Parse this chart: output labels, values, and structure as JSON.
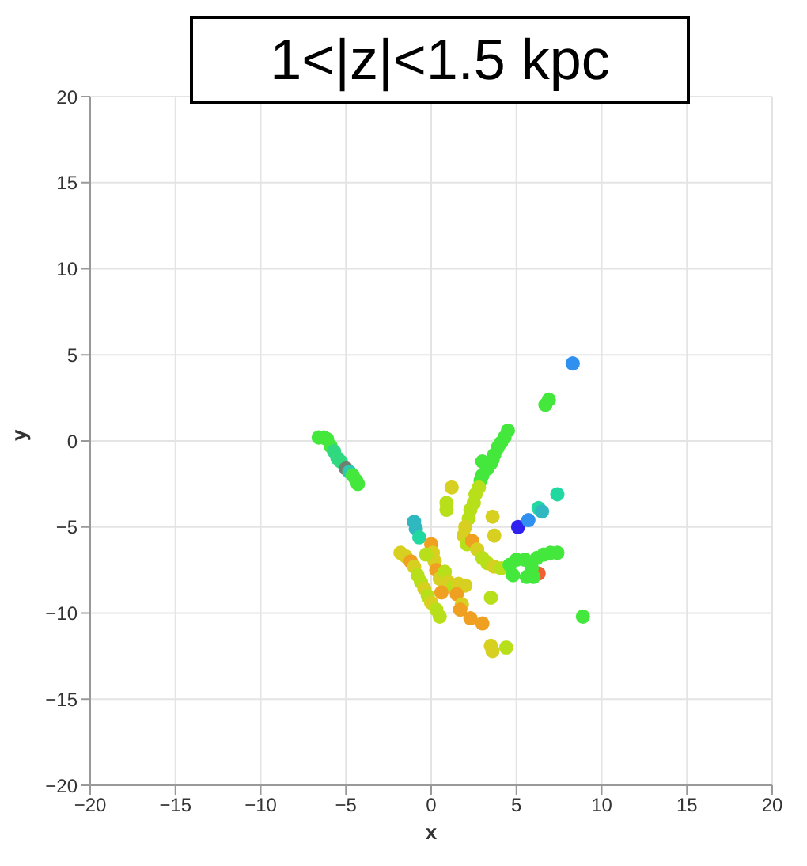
{
  "chart_data": {
    "type": "scatter",
    "title": "1<|z|<1.5 kpc",
    "xlabel": "x",
    "ylabel": "y",
    "xlim": [
      -20,
      20
    ],
    "ylim": [
      -20,
      20
    ],
    "xticks": [
      {
        "value": -20,
        "label": "−20"
      },
      {
        "value": -15,
        "label": "−15"
      },
      {
        "value": -10,
        "label": "−10"
      },
      {
        "value": -5,
        "label": "−5"
      },
      0,
      5,
      10,
      15,
      20
    ],
    "yticks": [
      {
        "value": -20,
        "label": "−20"
      },
      {
        "value": -15,
        "label": "−15"
      },
      {
        "value": -10,
        "label": "−10"
      },
      {
        "value": -5,
        "label": "−5"
      },
      0,
      5,
      10,
      15,
      20
    ],
    "grid": true,
    "marker": "circle",
    "series": [
      {
        "x": [
          -6.6,
          -6.3,
          -6.1,
          -5.9,
          -5.7,
          -5.5,
          -5.3,
          -5.0,
          -4.8,
          -4.6,
          -4.4,
          -4.3,
          8.3,
          6.9,
          6.7,
          4.5,
          4.3,
          4.1,
          3.9,
          3.7,
          3.6,
          3.5,
          3.0,
          3.3,
          3.0,
          2.9,
          2.8,
          2.6,
          2.5,
          2.3,
          2.2,
          2.0,
          1.9,
          2.1,
          2.4,
          2.7,
          3.0,
          3.3,
          3.7,
          4.1,
          4.6,
          3.6,
          3.7,
          1.2,
          0.9,
          0.9,
          5.1,
          5.7,
          6.3,
          6.5,
          7.4,
          8.9,
          5.0,
          5.5,
          6.2,
          6.6,
          7.0,
          7.4,
          6.3,
          5.9,
          5.6,
          6.0,
          4.8,
          -1.0,
          -0.9,
          -0.7,
          -1.8,
          -1.5,
          -1.2,
          -1.0,
          -0.8,
          -0.6,
          -0.4,
          -0.2,
          0.0,
          0.3,
          0.5,
          0.0,
          0.1,
          0.2,
          0.3,
          0.5,
          0.8,
          1.0,
          1.3,
          1.6,
          2.0,
          1.5,
          0.6,
          1.8,
          1.7,
          2.3,
          3.0,
          3.5,
          3.6,
          4.4,
          3.5,
          -0.3
        ],
        "values": [
          0.2,
          0.2,
          0.1,
          -0.3,
          -0.6,
          -1.0,
          -1.2,
          -1.6,
          -1.8,
          -2.0,
          -2.3,
          -2.5,
          4.5,
          2.4,
          2.1,
          0.6,
          0.2,
          -0.1,
          -0.4,
          -0.8,
          -1.1,
          -1.3,
          -1.2,
          -1.6,
          -2.0,
          -2.3,
          -2.7,
          -3.1,
          -3.6,
          -4.0,
          -4.5,
          -5.0,
          -5.5,
          -6.0,
          -5.8,
          -6.3,
          -6.8,
          -7.1,
          -7.3,
          -7.4,
          -7.2,
          -4.4,
          -5.5,
          -2.7,
          -4.0,
          -3.6,
          -5.0,
          -4.6,
          -3.9,
          -4.1,
          -3.1,
          -10.2,
          -6.9,
          -6.9,
          -6.8,
          -6.6,
          -6.5,
          -6.5,
          -7.7,
          -7.4,
          -7.9,
          -7.9,
          -7.8,
          -4.7,
          -5.1,
          -5.6,
          -6.5,
          -6.7,
          -7.0,
          -7.3,
          -7.8,
          -8.2,
          -8.6,
          -9.0,
          -9.4,
          -9.8,
          -10.2,
          -6.0,
          -6.5,
          -7.0,
          -7.5,
          -8.0,
          -7.6,
          -8.2,
          -8.5,
          -8.3,
          -8.4,
          -8.9,
          -8.8,
          -9.5,
          -9.8,
          -10.3,
          -10.6,
          -11.9,
          -12.2,
          -12.0,
          -9.1,
          -6.6
        ],
        "colors": [
          "#44e83c",
          "#44e83c",
          "#44e83c",
          "#44e83c",
          "#30d880",
          "#30d880",
          "#30d880",
          "#708070",
          "#30c8b0",
          "#44e83c",
          "#44e83c",
          "#44e83c",
          "#3090f0",
          "#44e83c",
          "#44e83c",
          "#44e83c",
          "#44e83c",
          "#44e83c",
          "#44e83c",
          "#44e83c",
          "#44e83c",
          "#44e83c",
          "#44e83c",
          "#44e83c",
          "#44e83c",
          "#44e83c",
          "#b8e01a",
          "#b8e01a",
          "#b8e01a",
          "#b8e01a",
          "#b8e01a",
          "#d8d020",
          "#d8d020",
          "#b8e01a",
          "#f0a020",
          "#d8d020",
          "#b8e01a",
          "#b8e01a",
          "#d8d020",
          "#b8e01a",
          "#44e83c",
          "#d8d020",
          "#d8d020",
          "#d8d020",
          "#b8e01a",
          "#b8e01a",
          "#3020f0",
          "#3090f0",
          "#20d8a0",
          "#30b8c0",
          "#20d8a0",
          "#44e83c",
          "#44e83c",
          "#44e83c",
          "#44e83c",
          "#44e83c",
          "#44e83c",
          "#44e83c",
          "#f06030",
          "#44e83c",
          "#44e83c",
          "#44e83c",
          "#44e83c",
          "#30b8c0",
          "#30b8c0",
          "#20d8a0",
          "#d8d020",
          "#d8d020",
          "#f0a020",
          "#d8d020",
          "#b8e01a",
          "#b8e01a",
          "#d8d020",
          "#b8e01a",
          "#d8d020",
          "#b8e01a",
          "#b8e01a",
          "#f0a020",
          "#d8d020",
          "#d8d020",
          "#f0a020",
          "#d8d020",
          "#b8e01a",
          "#d8d020",
          "#b8e01a",
          "#d8d020",
          "#d8d020",
          "#f0a020",
          "#f0a020",
          "#d8d020",
          "#f0a020",
          "#f0a020",
          "#f0a020",
          "#d8d020",
          "#d8d020",
          "#b8e01a",
          "#b8e01a",
          "#b8e01a"
        ]
      }
    ]
  }
}
